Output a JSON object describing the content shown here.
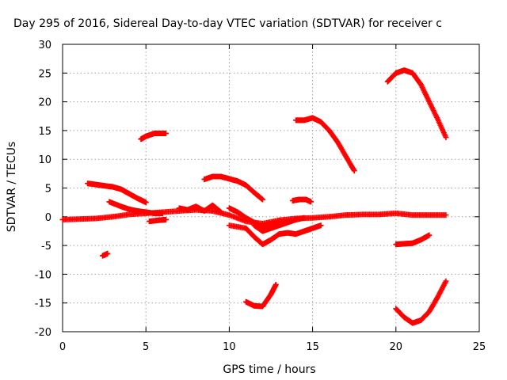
{
  "chart_data": {
    "type": "scatter",
    "title": "Day 295 of 2016, Sidereal Day-to-day VTEC variation (SDTVAR) for receiver c",
    "xlabel": "GPS time / hours",
    "ylabel": "SDTVAR / TECUs",
    "xlim": [
      0,
      25
    ],
    "ylim": [
      -20,
      30
    ],
    "xticks": [
      0,
      5,
      10,
      15,
      20,
      25
    ],
    "yticks": [
      -20,
      -15,
      -10,
      -5,
      0,
      5,
      10,
      15,
      20,
      25,
      30
    ],
    "grid": true,
    "legend": "none",
    "marker": "+",
    "color": "#ff0000",
    "series": [
      {
        "x": [
          0,
          1,
          2,
          3,
          4,
          5,
          6,
          7,
          8,
          9,
          10,
          11,
          12,
          13,
          14,
          15,
          16,
          17,
          18,
          19,
          20,
          21,
          22,
          23
        ],
        "y": [
          -0.5,
          -0.4,
          -0.3,
          0,
          0.4,
          0.6,
          0.8,
          1.0,
          1.2,
          1.0,
          0.3,
          -0.8,
          -1.2,
          -0.6,
          -0.3,
          -0.2,
          0,
          0.3,
          0.4,
          0.4,
          0.6,
          0.3,
          0.3,
          0.3
        ]
      },
      {
        "x": [
          1.5,
          2,
          2.5,
          3,
          3.5,
          4,
          4.5,
          5
        ],
        "y": [
          5.8,
          5.6,
          5.4,
          5.2,
          4.8,
          4.0,
          3.2,
          2.5
        ]
      },
      {
        "x": [
          2.8,
          3.5,
          4,
          4.5,
          5,
          5.5,
          6
        ],
        "y": [
          2.6,
          1.8,
          1.3,
          1.0,
          0.8,
          0.6,
          0.6
        ]
      },
      {
        "x": [
          4.7,
          5,
          5.5,
          6,
          6.2
        ],
        "y": [
          13.5,
          14,
          14.5,
          14.5,
          14.5
        ]
      },
      {
        "x": [
          2.4,
          2.7
        ],
        "y": [
          -6.8,
          -6.4
        ]
      },
      {
        "x": [
          5.2,
          5.8,
          6.2
        ],
        "y": [
          -0.8,
          -0.6,
          -0.5
        ]
      },
      {
        "x": [
          7,
          7.5,
          8,
          8.5,
          9,
          9.5
        ],
        "y": [
          1.5,
          1.2,
          1.8,
          1.0,
          2.0,
          0.8
        ]
      },
      {
        "x": [
          8.5,
          9,
          9.5,
          10,
          10.5,
          11,
          11.5,
          12
        ],
        "y": [
          6.5,
          7.0,
          7.0,
          6.6,
          6.2,
          5.5,
          4.2,
          3.0
        ]
      },
      {
        "x": [
          10,
          10.5,
          11,
          11.5,
          12,
          12.5,
          13
        ],
        "y": [
          1.5,
          0.8,
          -0.2,
          -1.0,
          -1.8,
          -1.5,
          -0.8
        ]
      },
      {
        "x": [
          10,
          11,
          11.5,
          12,
          12.5,
          13,
          13.5,
          14,
          14.5,
          15,
          15.5
        ],
        "y": [
          -1.5,
          -2.0,
          -3.5,
          -4.8,
          -4.0,
          -3.0,
          -2.8,
          -3.0,
          -2.5,
          -2.0,
          -1.5
        ]
      },
      {
        "x": [
          11.5,
          12,
          12.5,
          13,
          13.5,
          14,
          14.5
        ],
        "y": [
          -1.5,
          -2.5,
          -2.0,
          -1.5,
          -1.0,
          -0.5,
          -0.2
        ]
      },
      {
        "x": [
          11,
          11.5,
          12,
          12.5,
          12.8
        ],
        "y": [
          -14.8,
          -15.5,
          -15.6,
          -13.5,
          -11.8
        ]
      },
      {
        "x": [
          13.8,
          14.2,
          14.6,
          14.9
        ],
        "y": [
          2.8,
          3.0,
          3.0,
          2.6
        ]
      },
      {
        "x": [
          14,
          14.5,
          15,
          15.5,
          16,
          16.5,
          17,
          17.5
        ],
        "y": [
          16.8,
          16.8,
          17.2,
          16.5,
          15.0,
          13.0,
          10.5,
          8.0
        ]
      },
      {
        "x": [
          19.5,
          20,
          20.5,
          21,
          21.5,
          22,
          22.5,
          23
        ],
        "y": [
          23.5,
          25.0,
          25.5,
          25.0,
          23.0,
          20.0,
          17.0,
          13.8
        ]
      },
      {
        "x": [
          20,
          20.5,
          21,
          21.5,
          22
        ],
        "y": [
          -4.8,
          -4.7,
          -4.6,
          -4.0,
          -3.2
        ]
      },
      {
        "x": [
          20,
          20.5,
          21,
          21.5,
          22,
          22.5,
          23
        ],
        "y": [
          -16,
          -17.5,
          -18.5,
          -18.0,
          -16.5,
          -14.0,
          -11.2
        ]
      }
    ]
  }
}
